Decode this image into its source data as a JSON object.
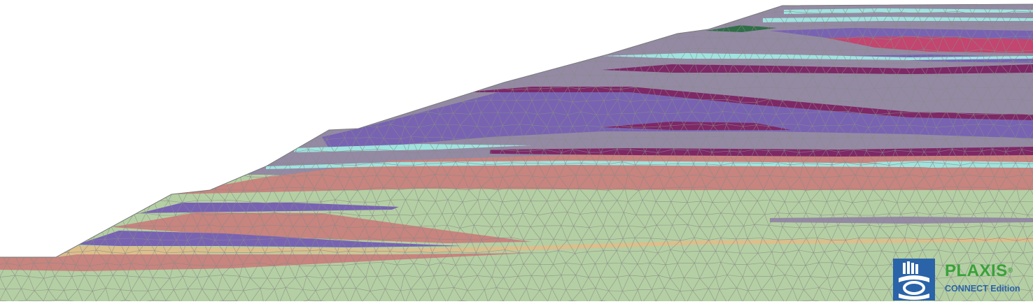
{
  "branding": {
    "product_name": "PLAXIS",
    "registered_mark": "®",
    "edition": "CONNECT Edition",
    "logo_icon": "plaxis-logo-icon"
  },
  "colors": {
    "background": "#ffffff",
    "mesh_line": "#8a8a8a",
    "soil_green": "#b4cfa3",
    "soil_pink": "#c8847e",
    "soil_tan": "#dcbf8c",
    "soil_purple": "#7863b2",
    "soil_gray_purple": "#948aa4",
    "soil_magenta": "#7e2866",
    "soil_cyan": "#9fe4de",
    "soil_dark_green": "#2f6e47",
    "soil_hot_pink": "#c2466f",
    "logo_blue": "#2a63a8",
    "logo_green": "#3aa13a"
  }
}
